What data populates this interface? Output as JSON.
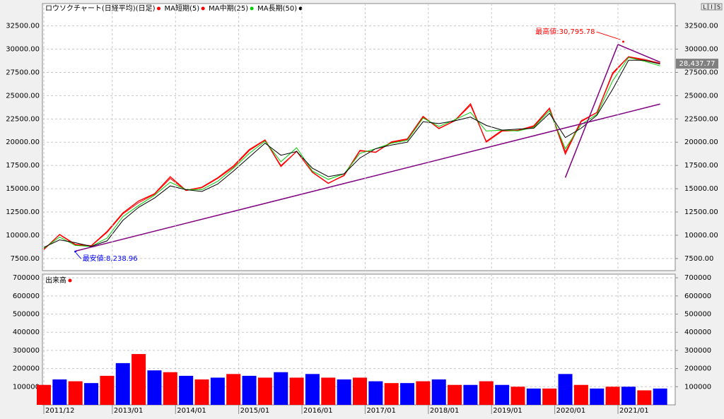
{
  "toolbar": [
    "L",
    "I",
    "S"
  ],
  "chart_data": [
    {
      "type": "line",
      "x": [
        "2011/12",
        "2012/03",
        "2012/06",
        "2012/09",
        "2012/12",
        "2013/03",
        "2013/06",
        "2013/09",
        "2013/12",
        "2014/03",
        "2014/06",
        "2014/09",
        "2014/12",
        "2015/03",
        "2015/06",
        "2015/09",
        "2015/12",
        "2016/03",
        "2016/06",
        "2016/09",
        "2016/12",
        "2017/03",
        "2017/06",
        "2017/09",
        "2017/12",
        "2018/03",
        "2018/06",
        "2018/09",
        "2018/12",
        "2019/03",
        "2019/06",
        "2019/09",
        "2019/12",
        "2020/03",
        "2020/06",
        "2020/09",
        "2020/12",
        "2021/03",
        "2021/06",
        "2021/09"
      ],
      "series": [
        {
          "name": "ロウソクチャート(日経平均)(日足)",
          "color": "#ff0000",
          "values": [
            8455,
            10083,
            9006,
            8870,
            10395,
            12397,
            13677,
            14455,
            16291,
            14827,
            15162,
            16173,
            17450,
            19206,
            20235,
            17388,
            19033,
            16758,
            15575,
            16449,
            19114,
            18909,
            20033,
            20356,
            22764,
            21454,
            22304,
            24120,
            20014,
            21205,
            21275,
            21755,
            23656,
            18917,
            22288,
            23185,
            27444,
            29178,
            28791,
            28437.77
          ]
        },
        {
          "name": "MA短期(5)",
          "color": "#ff0000",
          "values": [
            8500,
            10050,
            8950,
            8850,
            10300,
            12300,
            13500,
            14400,
            16100,
            14800,
            15100,
            16100,
            17300,
            19100,
            20200,
            17500,
            19000,
            16800,
            15600,
            16400,
            19050,
            18950,
            19950,
            20300,
            22700,
            21500,
            22300,
            23950,
            20100,
            21300,
            21250,
            21650,
            23600,
            18700,
            22200,
            23200,
            27300,
            29200,
            28900,
            28500
          ]
        },
        {
          "name": "MA中期(25)",
          "color": "#00cc00",
          "values": [
            8600,
            9800,
            8900,
            8800,
            9700,
            12000,
            13200,
            14300,
            15700,
            14900,
            14900,
            15800,
            17200,
            18800,
            20100,
            17900,
            19400,
            16900,
            16000,
            16600,
            18800,
            19300,
            19900,
            20200,
            22600,
            21700,
            22400,
            23200,
            21200,
            21300,
            21200,
            21600,
            23400,
            19300,
            21900,
            23000,
            26600,
            29100,
            28700,
            28200
          ]
        },
        {
          "name": "MA長期(50)",
          "color": "#000000",
          "values": [
            8700,
            9500,
            9200,
            8800,
            9400,
            11600,
            13000,
            14000,
            15300,
            14900,
            14700,
            15500,
            16900,
            18400,
            19900,
            18600,
            19000,
            17200,
            16300,
            16600,
            18300,
            19300,
            19700,
            20000,
            22200,
            22000,
            22300,
            22700,
            21800,
            21300,
            21400,
            21500,
            23100,
            20500,
            21500,
            22900,
            25700,
            28800,
            28800,
            28400
          ]
        }
      ],
      "ylim": [
        6200,
        34900
      ],
      "yticks": [
        {
          "value": 7500,
          "label": "7500.00"
        },
        {
          "value": 10000,
          "label": "10000.00"
        },
        {
          "value": 12500,
          "label": "12500.00"
        },
        {
          "value": 15000,
          "label": "15000.00"
        },
        {
          "value": 17500,
          "label": "17500.00"
        },
        {
          "value": 20000,
          "label": "20000.00"
        },
        {
          "value": 22500,
          "label": "22500.00"
        },
        {
          "value": 25000,
          "label": "25000.00"
        },
        {
          "value": 27500,
          "label": "27500.00"
        },
        {
          "value": 30000,
          "label": "30000.00"
        },
        {
          "value": 32500,
          "label": "32500.00"
        }
      ],
      "grid": true,
      "annotations": [
        {
          "x": "2021/02",
          "value": 30795.78,
          "label": "最高値:30,795.78",
          "color": "#ff0000"
        },
        {
          "x": "2012/06",
          "value": 8238.96,
          "label": "最安値:8,238.96",
          "color": "#0000ff"
        }
      ],
      "last_price": {
        "value": 28437.77,
        "label": "28,437.77"
      },
      "trendlines": [
        {
          "x": [
            "2012/06",
            "2021/09"
          ],
          "values": [
            8300,
            24100
          ],
          "color": "#800080"
        },
        {
          "x": [
            "2020/03",
            "2021/01"
          ],
          "values": [
            16200,
            30500
          ],
          "color": "#800080"
        },
        {
          "x": [
            "2021/01",
            "2021/09"
          ],
          "values": [
            30500,
            28600
          ],
          "color": "#800080"
        }
      ]
    },
    {
      "type": "bar",
      "x": [
        "2011/12",
        "2012/03",
        "2012/06",
        "2012/09",
        "2012/12",
        "2013/03",
        "2013/06",
        "2013/09",
        "2013/12",
        "2014/03",
        "2014/06",
        "2014/09",
        "2014/12",
        "2015/03",
        "2015/06",
        "2015/09",
        "2015/12",
        "2016/03",
        "2016/06",
        "2016/09",
        "2016/12",
        "2017/03",
        "2017/06",
        "2017/09",
        "2017/12",
        "2018/03",
        "2018/06",
        "2018/09",
        "2018/12",
        "2019/03",
        "2019/06",
        "2019/09",
        "2019/12",
        "2020/03",
        "2020/06",
        "2020/09",
        "2020/12",
        "2021/03",
        "2021/06",
        "2021/09"
      ],
      "series": [
        {
          "name": "出来高",
          "color": "#ff0000",
          "alt_color": "#0000ff",
          "values": [
            110000,
            140000,
            130000,
            120000,
            160000,
            230000,
            280000,
            190000,
            180000,
            160000,
            140000,
            150000,
            170000,
            160000,
            150000,
            180000,
            150000,
            170000,
            150000,
            140000,
            150000,
            130000,
            120000,
            120000,
            130000,
            140000,
            110000,
            110000,
            130000,
            110000,
            100000,
            90000,
            90000,
            170000,
            110000,
            90000,
            100000,
            100000,
            80000,
            90000
          ]
        }
      ],
      "ylim": [
        0,
        720000
      ],
      "yticks": [
        100000,
        200000,
        300000,
        400000,
        500000,
        600000,
        700000
      ],
      "xticks": [
        "2011/12",
        "2013/01",
        "2014/01",
        "2015/01",
        "2016/01",
        "2017/01",
        "2018/01",
        "2019/01",
        "2020/01",
        "2021/01"
      ],
      "grid": true
    }
  ]
}
